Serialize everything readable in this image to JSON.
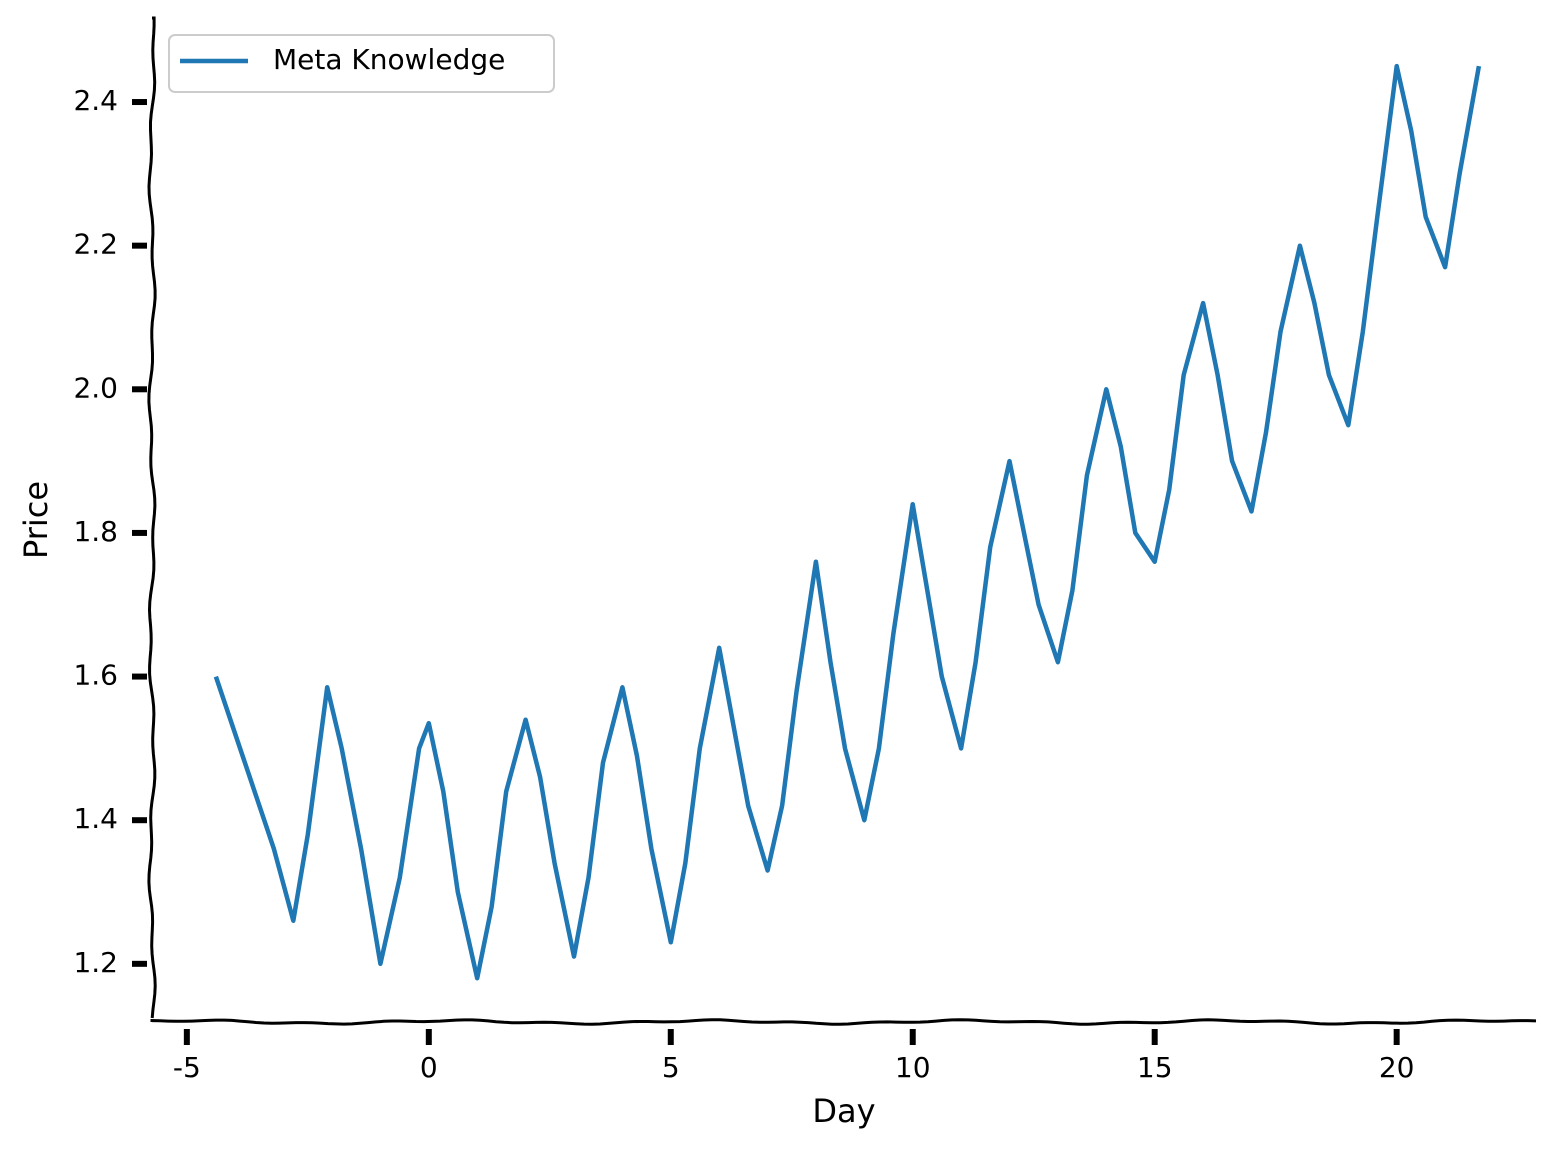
{
  "chart_data": {
    "type": "line",
    "x_label": "Day",
    "y_label": "Price",
    "x": [
      -4.4,
      -3.8,
      -3.2,
      -2.8,
      -2.5,
      -2.1,
      -1.8,
      -1.4,
      -1.0,
      -0.6,
      -0.2,
      0.0,
      0.3,
      0.6,
      1.0,
      1.3,
      1.6,
      2.0,
      2.3,
      2.6,
      3.0,
      3.3,
      3.6,
      4.0,
      4.3,
      4.6,
      5.0,
      5.3,
      5.6,
      6.0,
      6.3,
      6.6,
      7.0,
      7.3,
      7.6,
      8.0,
      8.3,
      8.6,
      9.0,
      9.3,
      9.6,
      10.0,
      10.3,
      10.6,
      11.0,
      11.3,
      11.6,
      12.0,
      12.3,
      12.6,
      13.0,
      13.3,
      13.6,
      14.0,
      14.3,
      14.6,
      15.0,
      15.3,
      15.6,
      16.0,
      16.3,
      16.6,
      17.0,
      17.3,
      17.6,
      18.0,
      18.3,
      18.6,
      19.0,
      19.3,
      19.6,
      20.0,
      20.3,
      20.6,
      21.0,
      21.3,
      21.7
    ],
    "series": [
      {
        "name": "Meta Knowledge",
        "color": "#1f77b4",
        "values": [
          1.6,
          1.48,
          1.36,
          1.26,
          1.38,
          1.585,
          1.5,
          1.36,
          1.2,
          1.32,
          1.5,
          1.535,
          1.44,
          1.3,
          1.18,
          1.28,
          1.44,
          1.54,
          1.46,
          1.34,
          1.21,
          1.32,
          1.48,
          1.585,
          1.49,
          1.36,
          1.23,
          1.34,
          1.5,
          1.64,
          1.53,
          1.42,
          1.33,
          1.42,
          1.58,
          1.76,
          1.62,
          1.5,
          1.4,
          1.5,
          1.66,
          1.84,
          1.72,
          1.6,
          1.5,
          1.62,
          1.78,
          1.9,
          1.8,
          1.7,
          1.62,
          1.72,
          1.88,
          2.0,
          1.92,
          1.8,
          1.76,
          1.86,
          2.02,
          2.12,
          2.02,
          1.9,
          1.83,
          1.94,
          2.08,
          2.2,
          2.12,
          2.02,
          1.95,
          2.08,
          2.24,
          2.45,
          2.36,
          2.24,
          2.17,
          2.3,
          2.45
        ]
      }
    ],
    "xlim": [
      -5.72,
      22.9
    ],
    "ylim": [
      1.119,
      2.517
    ],
    "xticks": [
      -5,
      0,
      5,
      10,
      15,
      20
    ],
    "yticks": [
      1.2,
      1.4,
      1.6,
      1.8,
      {
        "value": 2,
        "label": "2.0"
      },
      2.2,
      2.4
    ],
    "legend": "upper left"
  }
}
